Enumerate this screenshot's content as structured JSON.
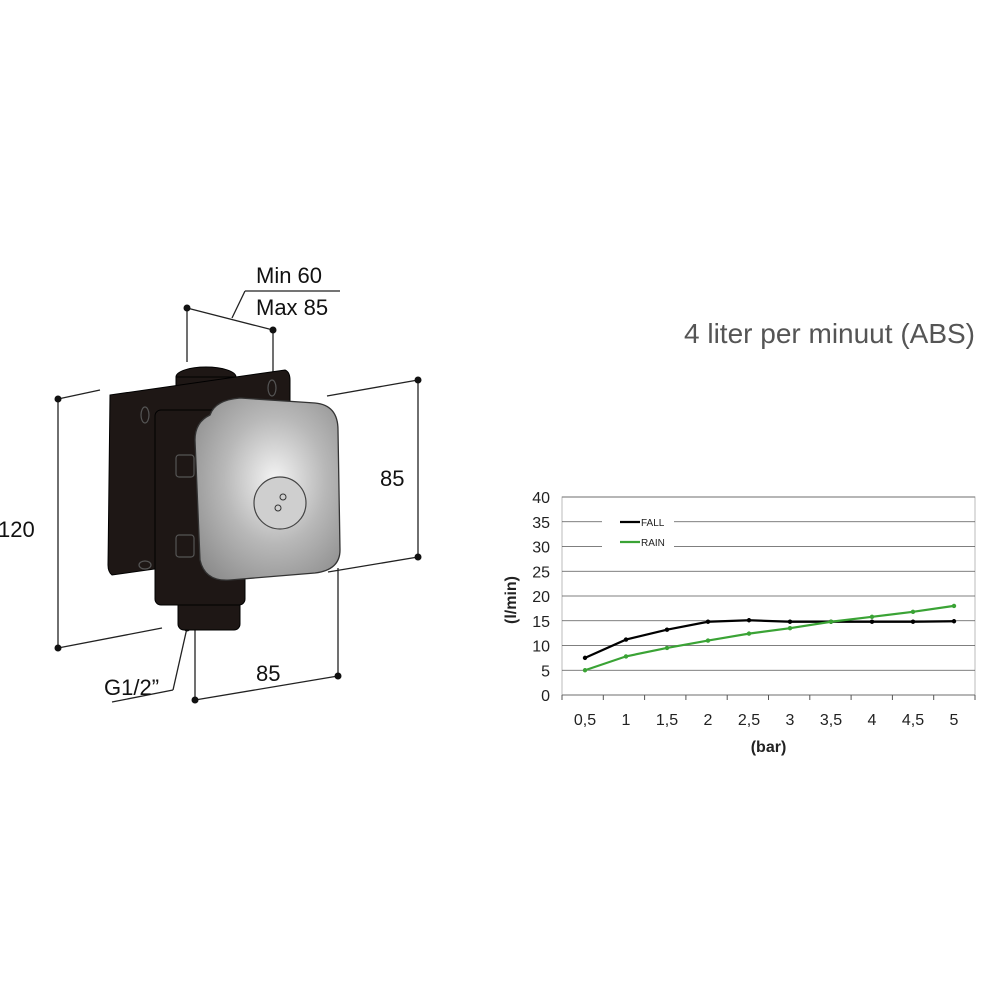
{
  "product": {
    "title": "4 liter per minuut (ABS)",
    "dimensions": {
      "depth_min": "Min 60",
      "depth_max": "Max 85",
      "height_total": "120",
      "plate_height": "85",
      "plate_width": "85",
      "connection": "G1/2”"
    },
    "colors": {
      "body": "#1e1715",
      "plate": "#c8c8c8"
    }
  },
  "chart_data": {
    "type": "line",
    "title": "",
    "xlabel": "(bar)",
    "ylabel": "(l/min)",
    "categories": [
      "0,5",
      "1",
      "1,5",
      "2",
      "2,5",
      "3",
      "3,5",
      "4",
      "4,5",
      "5"
    ],
    "x": [
      0.5,
      1,
      1.5,
      2,
      2.5,
      3,
      3.5,
      4,
      4.5,
      5
    ],
    "ylim": [
      0,
      40
    ],
    "yticks": [
      0,
      5,
      10,
      15,
      20,
      25,
      30,
      35,
      40
    ],
    "grid": true,
    "legend_position": "top-left",
    "series": [
      {
        "name": "FALL",
        "color": "#000000",
        "values": [
          7.5,
          11.2,
          13.2,
          14.8,
          15.1,
          14.8,
          14.8,
          14.8,
          14.8,
          14.9
        ]
      },
      {
        "name": "RAIN",
        "color": "#3aa335",
        "values": [
          5,
          7.8,
          9.5,
          11,
          12.4,
          13.5,
          14.8,
          15.8,
          16.8,
          18
        ]
      }
    ]
  }
}
